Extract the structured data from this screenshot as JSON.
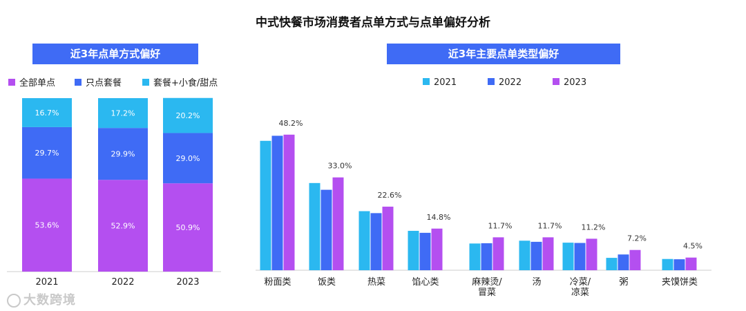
{
  "title": "中式快餐市场消费者点单方式与点单偏好分析",
  "colors": {
    "header_bg": "#3f6bf5",
    "c2021": "#2bb8f0",
    "c2022": "#3f6bf5",
    "c2023": "#b44ff0"
  },
  "watermark": "大数跨境",
  "chart_data": [
    {
      "type": "bar",
      "stacked": true,
      "title": "近3年点单方式偏好",
      "categories": [
        "2021",
        "2022",
        "2023"
      ],
      "series": [
        {
          "name": "全部单点",
          "color": "#b44ff0",
          "values": [
            53.6,
            52.9,
            50.9
          ],
          "labels": [
            "53.6%",
            "52.9%",
            "50.9%"
          ]
        },
        {
          "name": "只点套餐",
          "color": "#3f6bf5",
          "values": [
            29.7,
            29.9,
            29.0
          ],
          "labels": [
            "29.7%",
            "29.9%",
            "29.0%"
          ]
        },
        {
          "name": "套餐+小食/甜点",
          "color": "#2bb8f0",
          "values": [
            16.7,
            17.2,
            20.2
          ],
          "labels": [
            "16.7%",
            "17.2%",
            "20.2%"
          ]
        }
      ],
      "legend": "top",
      "ylim": [
        0,
        100
      ]
    },
    {
      "type": "bar",
      "title": "近3年主要点单类型偏好",
      "categories": [
        "粉面类",
        "饭类",
        "热菜",
        "馅心类",
        "麻辣烫/\n冒菜",
        "汤",
        "冷菜/\n凉菜",
        "粥",
        "夹馍饼类"
      ],
      "series": [
        {
          "name": "2021",
          "color": "#2bb8f0",
          "values": [
            46,
            31,
            21,
            14,
            9.5,
            10.5,
            9.8,
            4.4,
            4.0
          ]
        },
        {
          "name": "2022",
          "color": "#3f6bf5",
          "values": [
            47.8,
            28.6,
            20.3,
            13.3,
            9.6,
            10.1,
            9.7,
            5.6,
            3.9
          ]
        },
        {
          "name": "2023",
          "color": "#b44ff0",
          "values": [
            48.2,
            33.0,
            22.6,
            14.8,
            11.7,
            11.7,
            11.2,
            7.2,
            4.5
          ],
          "labels": [
            "48.2%",
            "33.0%",
            "22.6%",
            "14.8%",
            "11.7%",
            "11.7%",
            "11.2%",
            "7.2%",
            "4.5%"
          ]
        }
      ],
      "legend": "top",
      "ylim": [
        0,
        55
      ]
    }
  ]
}
